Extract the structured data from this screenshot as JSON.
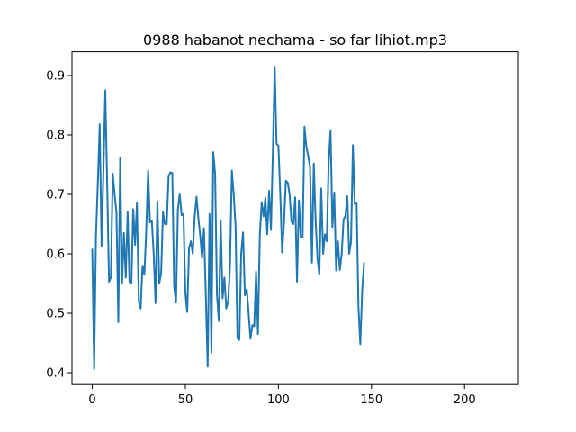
{
  "chart_data": {
    "type": "line",
    "title": "0988 habanot nechama - so far lihiot.mp3",
    "xlabel": "",
    "ylabel": "",
    "xlim": [
      -10.9,
      228.9
    ],
    "ylim": [
      0.38,
      0.94
    ],
    "xticks": [
      0,
      50,
      100,
      150,
      200
    ],
    "yticks": [
      0.4,
      0.5,
      0.6,
      0.7,
      0.8,
      0.9
    ],
    "ytick_labels": [
      "0.4",
      "0.5",
      "0.6",
      "0.7",
      "0.8",
      "0.9"
    ],
    "grid": false,
    "color": "#1f77b4",
    "series": [
      {
        "values": [
          0.607,
          0.406,
          0.63,
          0.72,
          0.818,
          0.612,
          0.74,
          0.875,
          0.72,
          0.553,
          0.56,
          0.735,
          0.7,
          0.67,
          0.485,
          0.762,
          0.55,
          0.635,
          0.56,
          0.67,
          0.553,
          0.55,
          0.675,
          0.615,
          0.685,
          0.52,
          0.508,
          0.58,
          0.565,
          0.64,
          0.74,
          0.653,
          0.656,
          0.6,
          0.517,
          0.688,
          0.55,
          0.567,
          0.67,
          0.65,
          0.65,
          0.73,
          0.737,
          0.736,
          0.545,
          0.518,
          0.675,
          0.7,
          0.665,
          0.667,
          0.535,
          0.502,
          0.61,
          0.621,
          0.6,
          0.662,
          0.696,
          0.66,
          0.63,
          0.593,
          0.643,
          0.53,
          0.41,
          0.667,
          0.434,
          0.771,
          0.735,
          0.53,
          0.487,
          0.655,
          0.525,
          0.56,
          0.508,
          0.52,
          0.58,
          0.74,
          0.7,
          0.645,
          0.458,
          0.455,
          0.6,
          0.636,
          0.53,
          0.54,
          0.5,
          0.457,
          0.48,
          0.478,
          0.57,
          0.465,
          0.63,
          0.687,
          0.663,
          0.694,
          0.633,
          0.706,
          0.64,
          0.77,
          0.915,
          0.785,
          0.782,
          0.7,
          0.602,
          0.652,
          0.723,
          0.72,
          0.7,
          0.655,
          0.65,
          0.695,
          0.553,
          0.69,
          0.628,
          0.628,
          0.814,
          0.78,
          0.765,
          0.745,
          0.585,
          0.752,
          0.655,
          0.592,
          0.565,
          0.71,
          0.6,
          0.633,
          0.621,
          0.755,
          0.808,
          0.645,
          0.703,
          0.572,
          0.621,
          0.573,
          0.6,
          0.658,
          0.664,
          0.697,
          0.6,
          0.62,
          0.783,
          0.684,
          0.685,
          0.51,
          0.448,
          0.538,
          0.584
        ]
      }
    ]
  }
}
